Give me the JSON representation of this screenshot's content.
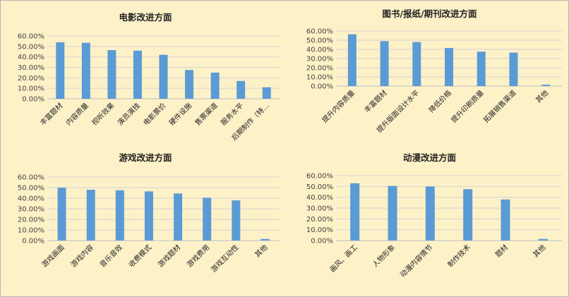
{
  "chart_data": [
    {
      "type": "bar",
      "title": "电影改进方面",
      "categories": [
        "丰富题材",
        "内容质量",
        "视听效果",
        "演员演技",
        "电影票价",
        "硬件设施",
        "售票渠道",
        "服务水平",
        "后期制作（特…"
      ],
      "values": [
        0.54,
        0.535,
        0.465,
        0.46,
        0.42,
        0.275,
        0.25,
        0.17,
        0.11
      ],
      "yticks": [
        "0.00%",
        "10.00%",
        "20.00%",
        "30.00%",
        "40.00%",
        "50.00%",
        "60.00%"
      ],
      "ylim": [
        0,
        0.6
      ],
      "grid": true,
      "color": "#5b9bd5"
    },
    {
      "type": "bar",
      "title": "图书/报纸/期刊改进方面",
      "categories": [
        "提升内容质量",
        "丰富题材",
        "提升版面设计水平",
        "降低价格",
        "提升印刷质量",
        "拓展销售渠道",
        "其他"
      ],
      "values": [
        0.565,
        0.49,
        0.48,
        0.415,
        0.375,
        0.365,
        0.015
      ],
      "yticks": [
        "0.00%",
        "10.00%",
        "20.00%",
        "30.00%",
        "40.00%",
        "50.00%",
        "60.00%"
      ],
      "ylim": [
        0,
        0.6
      ],
      "grid": true,
      "color": "#5b9bd5"
    },
    {
      "type": "bar",
      "title": "游戏改进方面",
      "categories": [
        "游戏画面",
        "游戏内容",
        "音乐音效",
        "收费模式",
        "游戏题材",
        "游戏费用",
        "游戏互动性",
        "其他"
      ],
      "values": [
        0.5,
        0.48,
        0.475,
        0.465,
        0.445,
        0.405,
        0.38,
        0.015
      ],
      "yticks": [
        "0.00%",
        "10.00%",
        "20.00%",
        "30.00%",
        "40.00%",
        "50.00%",
        "60.00%"
      ],
      "ylim": [
        0,
        0.6
      ],
      "grid": true,
      "color": "#5b9bd5"
    },
    {
      "type": "bar",
      "title": "动漫改进方面",
      "categories": [
        "画风、画工",
        "人物形象",
        "动漫内容情节",
        "制作技术",
        "题材",
        "其他"
      ],
      "values": [
        0.53,
        0.505,
        0.5,
        0.475,
        0.38,
        0.015
      ],
      "yticks": [
        "0.00%",
        "10.00%",
        "20.00%",
        "30.00%",
        "40.00%",
        "50.00%",
        "60.00%"
      ],
      "ylim": [
        0,
        0.6
      ],
      "grid": true,
      "color": "#5b9bd5"
    }
  ]
}
